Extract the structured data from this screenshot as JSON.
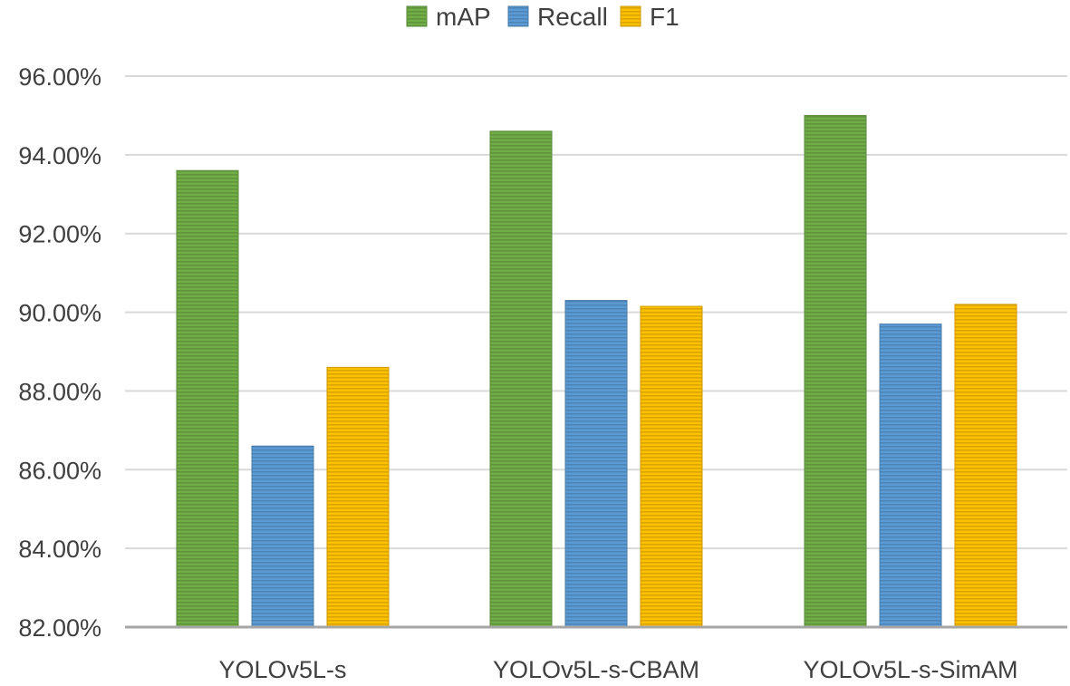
{
  "chart_data": {
    "type": "bar",
    "title": "",
    "xlabel": "",
    "ylabel": "",
    "categories": [
      "YOLOv5L-s",
      "YOLOv5L-s-CBAM",
      "YOLOv5L-s-SimAM"
    ],
    "series": [
      {
        "name": "mAP",
        "color": "#70ad47",
        "values": [
          93.6,
          94.6,
          95.0
        ]
      },
      {
        "name": "Recall",
        "color": "#5b9bd5",
        "values": [
          86.6,
          90.3,
          89.7
        ]
      },
      {
        "name": "F1",
        "color": "#ffc000",
        "values": [
          88.6,
          90.15,
          90.2
        ]
      }
    ],
    "ylim": [
      82,
      96
    ],
    "yticks": [
      82,
      84,
      86,
      88,
      90,
      92,
      94,
      96
    ],
    "ytick_labels": [
      "82.00%",
      "84.00%",
      "86.00%",
      "88.00%",
      "90.00%",
      "92.00%",
      "94.00%",
      "96.00%"
    ],
    "grid": true,
    "legend_position": "top-center",
    "bar_fill_style": "horizontal-stripes"
  }
}
